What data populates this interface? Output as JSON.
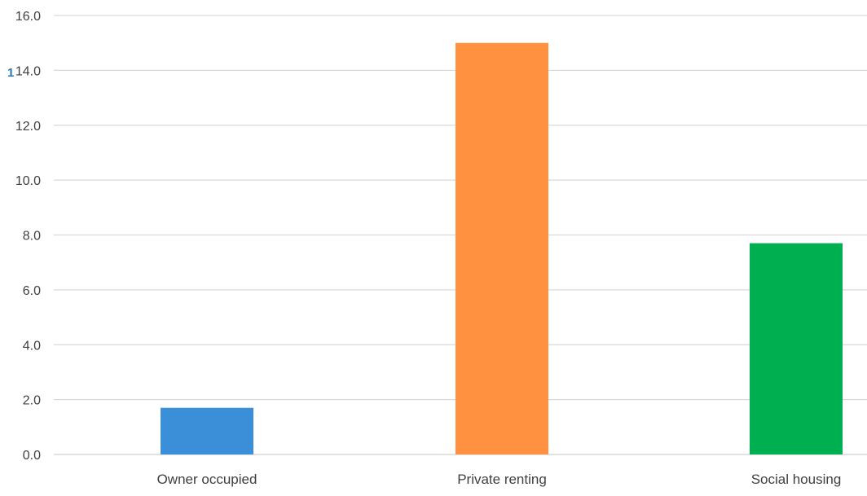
{
  "chart_data": {
    "type": "bar",
    "categories": [
      "Owner occupied",
      "Private renting",
      "Social housing"
    ],
    "values": [
      1.7,
      15.0,
      7.7
    ],
    "bar_colors": [
      "#3a8fd8",
      "#ff9140",
      "#00b050"
    ],
    "title": "",
    "xlabel": "",
    "ylabel": "",
    "ylim": [
      0,
      16
    ],
    "yticks": [
      "0.0",
      "2.0",
      "4.0",
      "6.0",
      "8.0",
      "10.0",
      "12.0",
      "14.0",
      "16.0"
    ],
    "grid": true,
    "legend": "none"
  },
  "colors": {
    "gridline": "#d9d9d9",
    "axis_line": "#d9d9d9",
    "text": "#404040",
    "stray_mark": "#2e75b6"
  },
  "stray_mark_text": "1"
}
